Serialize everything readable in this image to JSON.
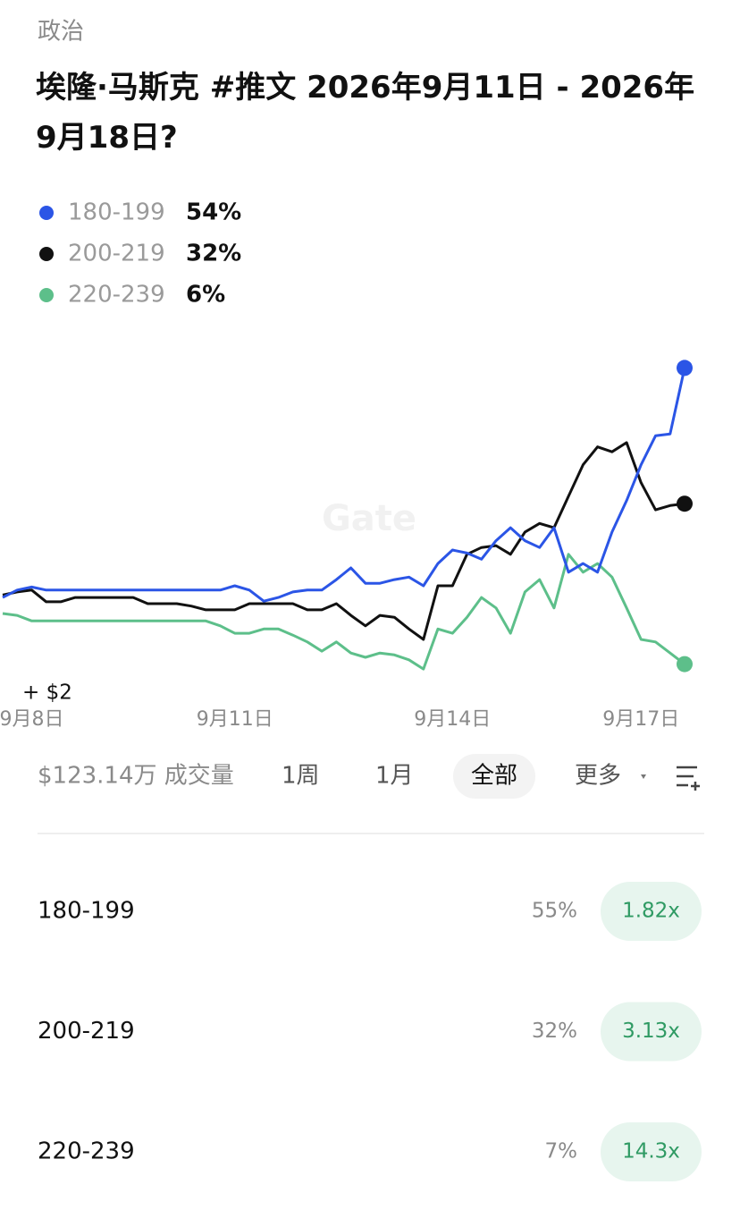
{
  "category": "政治",
  "title": "埃隆·马斯克 #推文 2026年9月11日 - 2026年9月18日?",
  "chart_data": {
    "type": "line",
    "categories": [
      null,
      null,
      "9月8日",
      null,
      null,
      null,
      null,
      null,
      null,
      null,
      null,
      null,
      null,
      null,
      null,
      null,
      "9月11日",
      null,
      null,
      null,
      null,
      null,
      null,
      null,
      null,
      null,
      null,
      null,
      null,
      null,
      null,
      "9月14日",
      null,
      null,
      null,
      null,
      null,
      null,
      null,
      null,
      null,
      null,
      null,
      null,
      "9月17日",
      null,
      null,
      null
    ],
    "ylim": [
      0,
      60
    ],
    "annotation": "+ $2",
    "watermark": "Gate",
    "series": [
      {
        "name": "180-199",
        "color": "#2b55e6",
        "last_label": "54%",
        "values": [
          16.8,
          18,
          18.5,
          18,
          18,
          18,
          18,
          18,
          18,
          18,
          18,
          18,
          18,
          18,
          18,
          18,
          18.7,
          18,
          16.2,
          16.8,
          17.7,
          18,
          18,
          19.7,
          21.6,
          19.1,
          19.1,
          19.7,
          20.1,
          18.7,
          22.3,
          24.5,
          24,
          23,
          26,
          28.1,
          26,
          24.9,
          28.1,
          20.9,
          22.3,
          20.9,
          27.4,
          32.5,
          38.3,
          43,
          43.3,
          54
        ]
      },
      {
        "name": "200-219",
        "color": "#111111",
        "last_label": "32%",
        "values": [
          17.2,
          17.7,
          18,
          16.1,
          16.1,
          16.8,
          16.8,
          16.8,
          16.8,
          16.8,
          15.8,
          15.8,
          15.8,
          15.4,
          14.8,
          14.8,
          14.8,
          15.8,
          15.8,
          15.8,
          15.8,
          14.8,
          14.8,
          15.8,
          13.9,
          12.2,
          13.9,
          13.6,
          11.7,
          10,
          18.7,
          18.7,
          23.8,
          24.9,
          25.2,
          23.8,
          27.4,
          28.8,
          28.1,
          33.2,
          38.3,
          41.2,
          40.4,
          41.9,
          35.4,
          31,
          31.7,
          32
        ]
      },
      {
        "name": "220-239",
        "color": "#5dbf8a",
        "last_label": "6%",
        "values": [
          14.2,
          13.9,
          13,
          13,
          13,
          13,
          13,
          13,
          13,
          13,
          13,
          13,
          13,
          13,
          13,
          12.2,
          11,
          11,
          11.7,
          11.7,
          10.7,
          9.6,
          8.1,
          9.6,
          7.8,
          7.1,
          7.8,
          7.5,
          6.7,
          5.2,
          11.7,
          11,
          13.6,
          16.8,
          15.1,
          11,
          17.7,
          19.7,
          15.1,
          23.8,
          20.9,
          22.3,
          20.1,
          15.1,
          10,
          9.6,
          7.8,
          6
        ]
      }
    ]
  },
  "toolbar": {
    "volume": "$123.14万 成交量",
    "tabs": [
      "1周",
      "1月",
      "全部"
    ],
    "more": "更多"
  },
  "outcomes": [
    {
      "name": "180-199",
      "percent": "55%",
      "multiplier": "1.82x"
    },
    {
      "name": "200-219",
      "percent": "32%",
      "multiplier": "3.13x"
    },
    {
      "name": "220-239",
      "percent": "7%",
      "multiplier": "14.3x"
    }
  ]
}
